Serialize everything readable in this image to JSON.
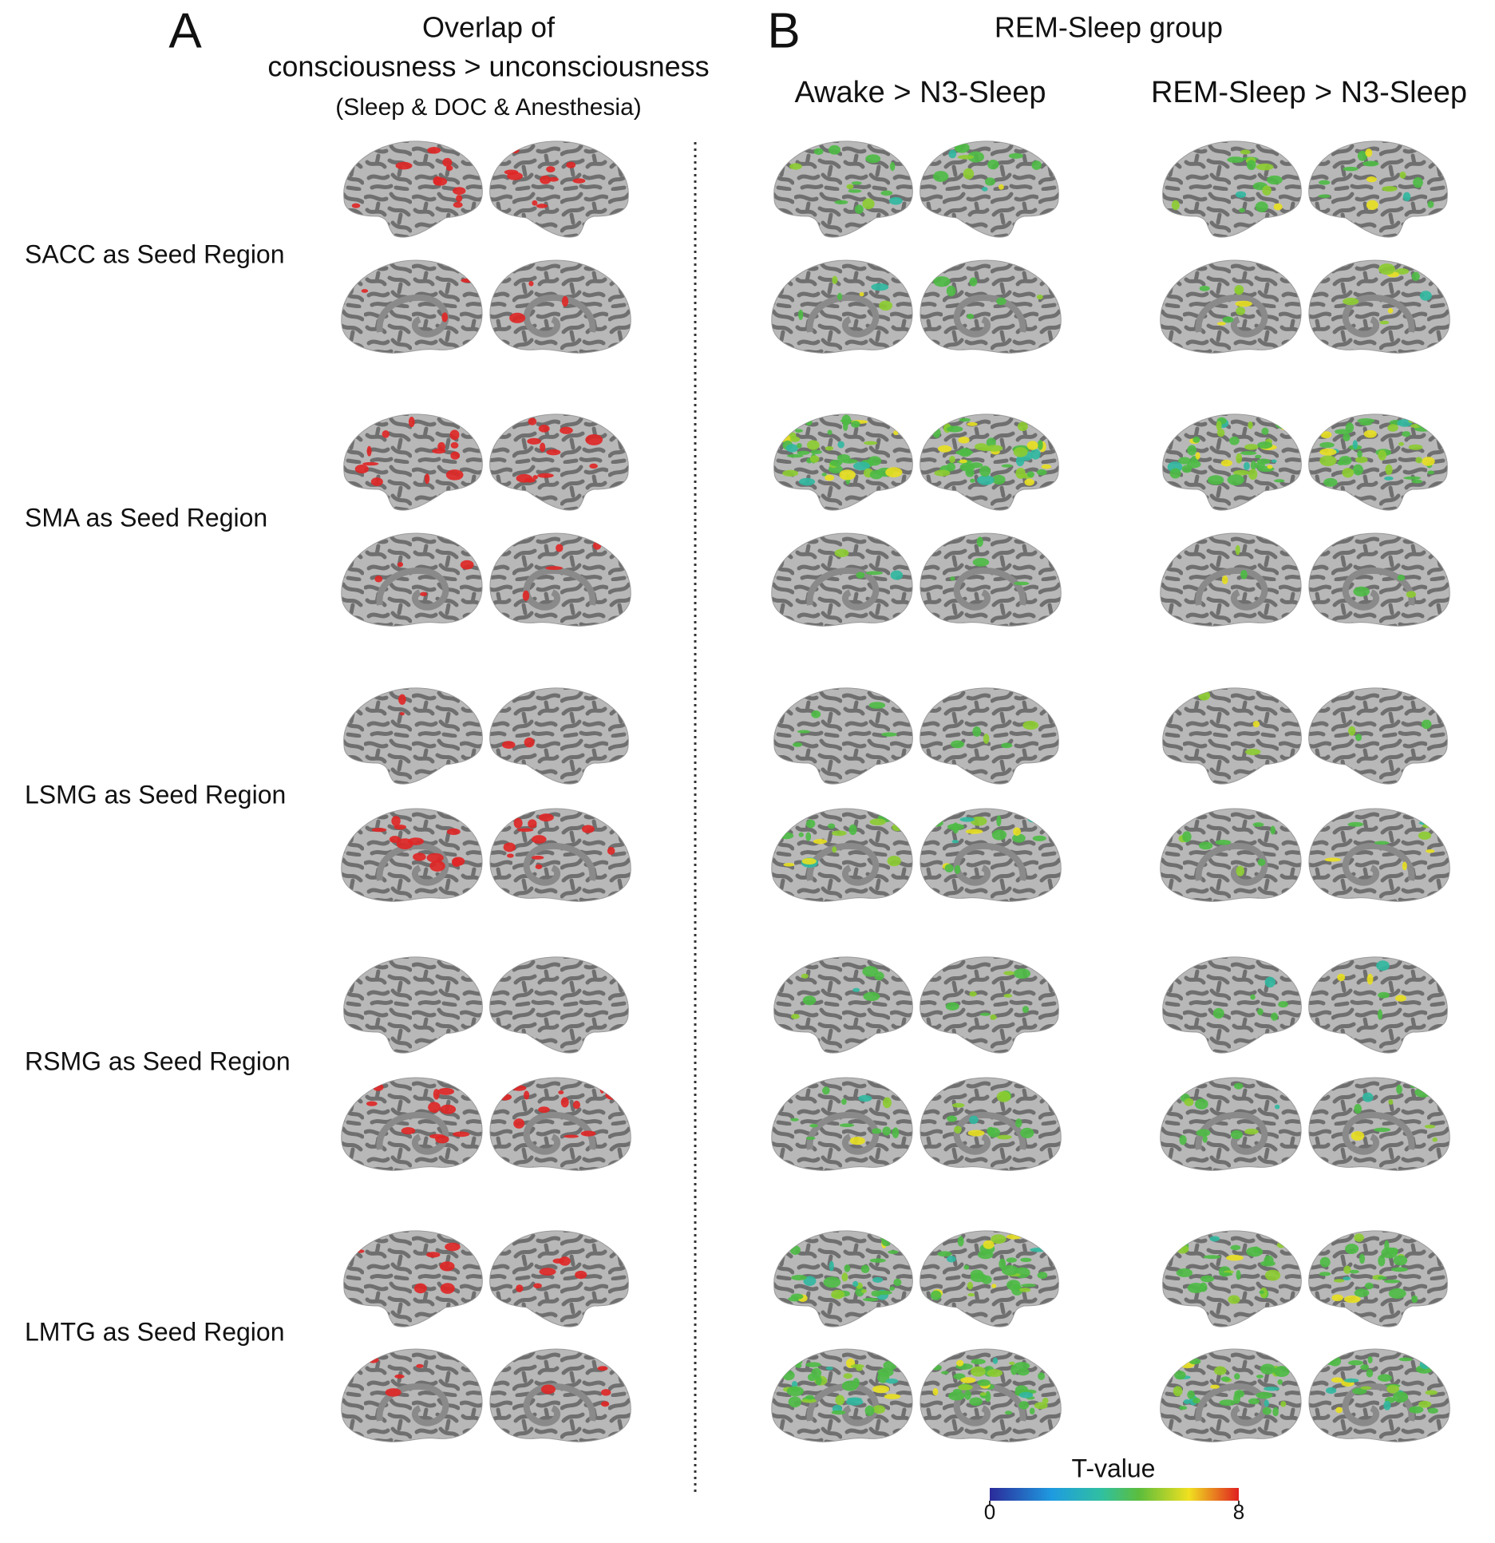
{
  "panel_a": {
    "letter": "A",
    "title_lines": [
      "Overlap of",
      "consciousness > unconsciousness"
    ],
    "subtitle": "(Sleep & DOC & Anesthesia)"
  },
  "panel_b": {
    "letter": "B",
    "title": "REM-Sleep group",
    "columns": [
      "Awake > N3-Sleep",
      "REM-Sleep > N3-Sleep"
    ]
  },
  "rows": [
    "SACC as Seed Region",
    "SMA as Seed Region",
    "LSMG as Seed Region",
    "RSMG as Seed Region",
    "LMTG as Seed Region"
  ],
  "colorbar": {
    "label": "T-value",
    "ticks": [
      0,
      8
    ]
  }
}
